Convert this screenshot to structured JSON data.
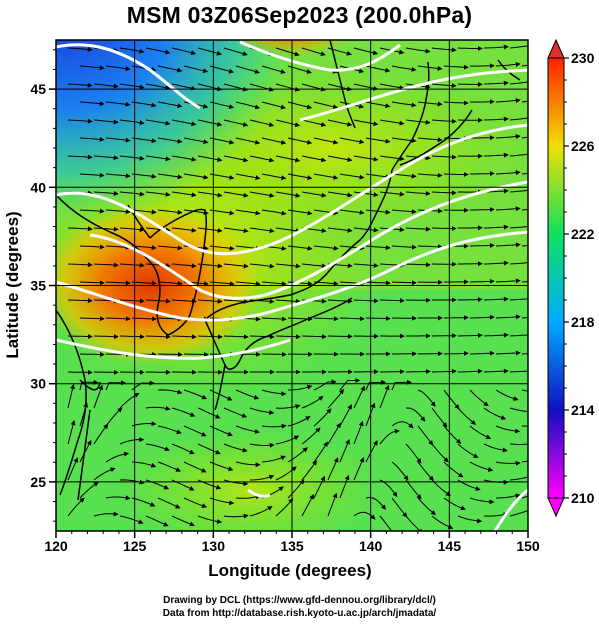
{
  "title": "MSM 03Z06Sep2023 (200.0hPa)",
  "x_axis": {
    "label": "Longitude (degrees)",
    "ticks": [
      "120",
      "125",
      "130",
      "135",
      "140",
      "145",
      "150"
    ]
  },
  "y_axis": {
    "label": "Latitude  (degrees)",
    "ticks": [
      "25",
      "30",
      "35",
      "40",
      "45"
    ]
  },
  "colorbar": {
    "ticks": [
      "210",
      "214",
      "218",
      "222",
      "226",
      "230"
    ],
    "colors": [
      "#ff00ff",
      "#1010c0",
      "#00aaff",
      "#10e060",
      "#f0e000",
      "#ff2000"
    ]
  },
  "credits": {
    "line1": "Drawing by DCL (https://www.gfd-dennou.org/library/dcl/)",
    "line2": "Data from http://database.rish.kyoto-u.ac.jp/arch/jmadata/"
  },
  "chart_data": {
    "type": "heatmap",
    "xlim": [
      120,
      150
    ],
    "ylim": [
      22.5,
      47.5
    ],
    "value_range": [
      210,
      230
    ],
    "streamlines": true,
    "contour_lines": true,
    "coastlines": true,
    "grid": true
  }
}
